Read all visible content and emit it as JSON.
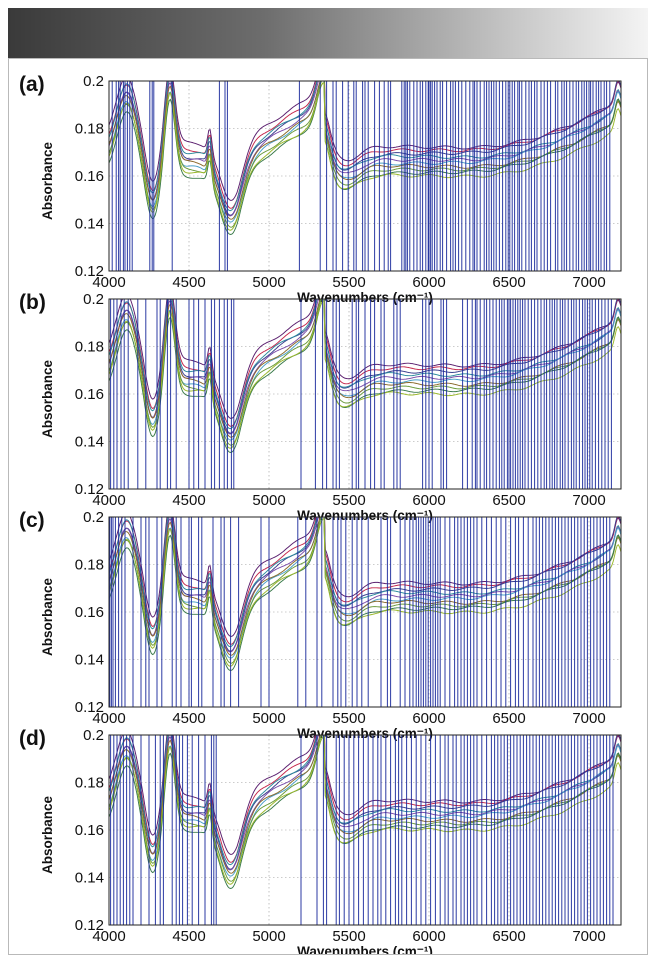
{
  "figure": {
    "header_color_start": "#3a3a3a",
    "header_color_end": "#f4f4f4"
  },
  "chart_data": [
    {
      "type": "line",
      "panel_label": "(a)",
      "xlabel": "Wavenumbers (cm⁻¹)",
      "ylabel": "Absorbance",
      "xlim": [
        4000,
        7200
      ],
      "ylim": [
        0.12,
        0.2
      ],
      "xticks": [
        4000,
        4500,
        5000,
        5500,
        6000,
        6500,
        7000
      ],
      "yticks": [
        0.12,
        0.14,
        0.16,
        0.18,
        0.2
      ],
      "grid": true,
      "series_count": 10,
      "spectrum_range": {
        "peak_4380": [
          0.195,
          0.2
        ],
        "min_4750": [
          0.135,
          0.152
        ],
        "peak_5330": [
          0.19,
          0.2
        ],
        "plateau_6000": [
          0.157,
          0.172
        ]
      },
      "variable_selection_wavenumbers": [
        4020,
        4045,
        4060,
        4070,
        4090,
        4100,
        4115,
        4130,
        4145,
        4255,
        4270,
        4280,
        4395,
        4690,
        4725,
        4740,
        5190,
        5320,
        5360,
        5400,
        5420,
        5460,
        5495,
        5530,
        5545,
        5585,
        5600,
        5620,
        5660,
        5690,
        5720,
        5745,
        5760,
        5830,
        5845,
        5855,
        5865,
        5880,
        5905,
        5925,
        5945,
        5960,
        5980,
        5995,
        6000,
        6010,
        6020,
        6035,
        6050,
        6070,
        6085,
        6110,
        6135,
        6150,
        6165,
        6185,
        6205,
        6230,
        6255,
        6275,
        6285,
        6300,
        6320,
        6345,
        6360,
        6375,
        6390,
        6405,
        6420,
        6440,
        6460,
        6480,
        6495,
        6505,
        6520,
        6535,
        6555,
        6565,
        6580,
        6605,
        6625,
        6640,
        6660,
        6675,
        6700,
        6720,
        6740,
        6760,
        6790,
        6805,
        6830,
        6845,
        6860,
        6880,
        6900,
        6920,
        6935,
        6955,
        6970,
        6985,
        7000,
        7010,
        7025,
        7045,
        7060,
        7075,
        7095,
        7110,
        7130
      ]
    },
    {
      "type": "line",
      "panel_label": "(b)",
      "xlabel": "Wavenumbers (cm⁻¹)",
      "ylabel": "Absorbance",
      "xlim": [
        4000,
        7200
      ],
      "ylim": [
        0.12,
        0.2
      ],
      "xticks": [
        4000,
        4500,
        5000,
        5500,
        6000,
        6500,
        7000
      ],
      "yticks": [
        0.12,
        0.14,
        0.16,
        0.18,
        0.2
      ],
      "grid": true,
      "series_count": 10,
      "variable_selection_wavenumbers": [
        4010,
        4030,
        4050,
        4075,
        4095,
        4120,
        4180,
        4230,
        4300,
        4320,
        4365,
        4385,
        4420,
        4500,
        4530,
        4560,
        4600,
        4640,
        4660,
        4690,
        4720,
        4740,
        4765,
        4780,
        5200,
        5290,
        5335,
        5360,
        5400,
        5420,
        5440,
        5520,
        5545,
        5560,
        5600,
        5635,
        5660,
        5700,
        5720,
        5780,
        5800,
        5820,
        5960,
        5980,
        6000,
        6020,
        6075,
        6090,
        6110,
        6210,
        6240,
        6270,
        6290,
        6300,
        6320,
        6345,
        6360,
        6380,
        6400,
        6420,
        6440,
        6455,
        6470,
        6490,
        6500,
        6510,
        6525,
        6540,
        6555,
        6570,
        6585,
        6600,
        6620,
        6640,
        6660,
        6680,
        6700,
        6720,
        6735,
        6755,
        6770,
        6785,
        6800,
        6820,
        6835,
        6850,
        6870,
        6890,
        6905,
        6920,
        6940,
        6960,
        6975,
        6990,
        7005,
        7020,
        7040,
        7060,
        7080,
        7100,
        7120,
        7140
      ]
    },
    {
      "type": "line",
      "panel_label": "(c)",
      "xlabel": "Wavenumbers (cm⁻¹)",
      "ylabel": "Absorbance",
      "xlim": [
        4000,
        7200
      ],
      "ylim": [
        0.12,
        0.2
      ],
      "xticks": [
        4000,
        4500,
        5000,
        5500,
        6000,
        6500,
        7000
      ],
      "yticks": [
        0.12,
        0.14,
        0.16,
        0.18,
        0.2
      ],
      "grid": true,
      "series_count": 10,
      "variable_selection_wavenumbers": [
        4005,
        4015,
        4025,
        4040,
        4060,
        4080,
        4100,
        4150,
        4200,
        4230,
        4250,
        4300,
        4330,
        4395,
        4420,
        4450,
        4500,
        4515,
        4560,
        4580,
        4650,
        4700,
        4720,
        4760,
        4810,
        4950,
        5000,
        5180,
        5230,
        5300,
        5330,
        5400,
        5430,
        5450,
        5480,
        5520,
        5550,
        5580,
        5620,
        5700,
        5740,
        5760,
        5820,
        5850,
        5880,
        5900,
        5920,
        5935,
        5950,
        5965,
        5980,
        5995,
        6010,
        6025,
        6040,
        6055,
        6070,
        6100,
        6130,
        6160,
        6180,
        6200,
        6220,
        6240,
        6260,
        6280,
        6300,
        6330,
        6360,
        6390,
        6420,
        6450,
        6480,
        6510,
        6540,
        6560,
        6590,
        6620,
        6650,
        6670,
        6690,
        6710,
        6730,
        6750,
        6770,
        6790,
        6810,
        6830,
        6850,
        6870,
        6890,
        6910,
        6930,
        6950,
        6970,
        6990,
        7010,
        7030,
        7050,
        7070,
        7090,
        7110,
        7130
      ]
    },
    {
      "type": "line",
      "panel_label": "(d)",
      "xlabel": "Wavenumbers (cm⁻¹)",
      "ylabel": "Absorbance",
      "xlim": [
        4000,
        7200
      ],
      "ylim": [
        0.12,
        0.2
      ],
      "xticks": [
        4000,
        4500,
        5000,
        5500,
        6000,
        6500,
        7000
      ],
      "yticks": [
        0.12,
        0.14,
        0.16,
        0.18,
        0.2
      ],
      "grid": true,
      "series_count": 10,
      "variable_selection_wavenumbers": [
        4010,
        4030,
        4050,
        4070,
        4090,
        4110,
        4130,
        4150,
        4200,
        4250,
        4290,
        4320,
        4340,
        4395,
        4420,
        4440,
        4460,
        4490,
        4520,
        4560,
        4600,
        4640,
        4655,
        4670,
        5200,
        5300,
        5340,
        5360,
        5420,
        5440,
        5470,
        5500,
        5530,
        5560,
        5590,
        5620,
        5650,
        5680,
        5700,
        5730,
        5760,
        5790,
        5810,
        5830,
        5860,
        5890,
        5920,
        5950,
        5980,
        6010,
        6040,
        6070,
        6100,
        6120,
        6150,
        6170,
        6200,
        6220,
        6240,
        6260,
        6280,
        6300,
        6330,
        6360,
        6390,
        6410,
        6430,
        6450,
        6470,
        6490,
        6510,
        6530,
        6550,
        6570,
        6590,
        6610,
        6630,
        6650,
        6670,
        6690,
        6710,
        6730,
        6750,
        6770,
        6790,
        6810,
        6830,
        6850,
        6870,
        6890,
        6910,
        6930,
        6950,
        6970,
        6990,
        7010,
        7030,
        7050,
        7070,
        7090,
        7110,
        7130,
        7150
      ]
    }
  ],
  "series_colors": [
    "#5a1e6e",
    "#c4274b",
    "#3b3f8f",
    "#2a8a9c",
    "#7a4aa8",
    "#4aa0c8",
    "#8a6a2a",
    "#6a9a3a",
    "#3a7a4a",
    "#9ab82a"
  ]
}
